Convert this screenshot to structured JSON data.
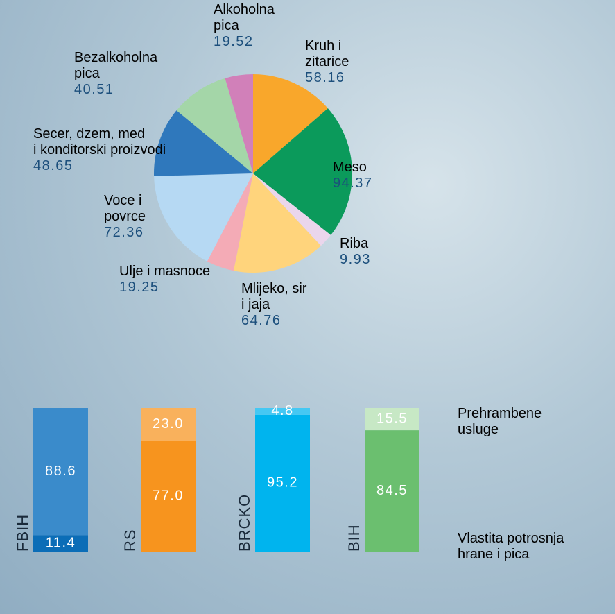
{
  "chart_data": [
    {
      "type": "pie",
      "categories": [
        "Kruh i\nzitarice",
        "Meso",
        "Riba",
        "Mlijeko, sir\ni jaja",
        "Ulje i masnoce",
        "Voce i\npovrce",
        "Secer, dzem, med\ni konditorski proizvodi",
        "Bezalkoholna\npica",
        "Alkoholna\npica"
      ],
      "values": [
        58.16,
        94.37,
        9.93,
        64.76,
        19.25,
        72.36,
        48.65,
        40.51,
        19.52
      ],
      "colors": [
        "#f9a72b",
        "#0b9a5b",
        "#ead6ec",
        "#ffd47c",
        "#f4abb6",
        "#b6d9f3",
        "#2f78bc",
        "#a4d6a8",
        "#d180b9"
      ]
    },
    {
      "type": "stacked-bar",
      "categories": [
        "FBIH",
        "RS",
        "BRCKO",
        "BIH"
      ],
      "ylim": [
        0,
        100
      ],
      "series": [
        {
          "name": "Vlastita potrosnja\nhrane i pica",
          "values": [
            11.4,
            77.0,
            95.2,
            84.5
          ],
          "value_labels": [
            "11.4",
            "77.0",
            "95.2",
            "84.5"
          ],
          "colors": [
            "#0b6db7",
            "#f7941e",
            "#00b4ee",
            "#6bbf6f"
          ]
        },
        {
          "name": "Prehrambene\nusluge",
          "values": [
            88.6,
            23.0,
            4.8,
            15.5
          ],
          "value_labels": [
            "88.6",
            "23.0",
            "4.8",
            "15.5"
          ],
          "colors": [
            "#3a8bcb",
            "#f9b15c",
            "#45c8f3",
            "#c7e8c5"
          ]
        }
      ]
    }
  ]
}
